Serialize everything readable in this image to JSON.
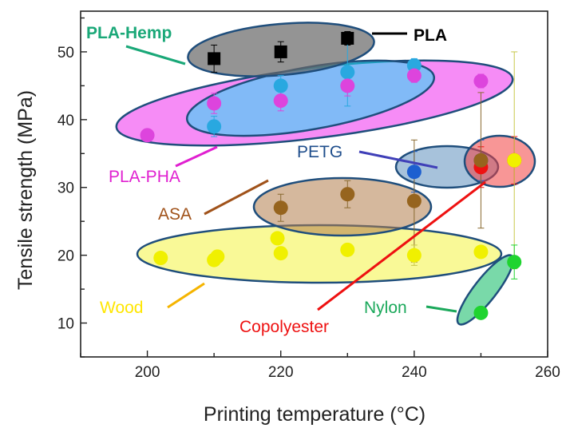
{
  "chart_data": {
    "type": "scatter",
    "xlabel": "Printing temperature (°C)",
    "ylabel": "Tensile strength (MPa)",
    "xlim": [
      190,
      260
    ],
    "ylim": [
      5,
      56
    ],
    "xticks": [
      200,
      220,
      240,
      260
    ],
    "yticks": [
      10,
      20,
      30,
      40,
      50
    ],
    "grid": false,
    "series": [
      {
        "name": "PLA",
        "color": "#000000",
        "marker": "square",
        "points": [
          {
            "x": 210,
            "y": 49,
            "err": 2
          },
          {
            "x": 220,
            "y": 50,
            "err": 1.5
          },
          {
            "x": 230,
            "y": 52,
            "err": 1
          }
        ]
      },
      {
        "name": "PLA-Hemp",
        "color": "#29a8e0",
        "marker": "circle",
        "points": [
          {
            "x": 210,
            "y": 39,
            "err": 1.5
          },
          {
            "x": 220,
            "y": 45,
            "err": 1.5
          },
          {
            "x": 230,
            "y": 47,
            "err": 5
          },
          {
            "x": 240,
            "y": 48,
            "err": 1
          }
        ]
      },
      {
        "name": "PLA-PHA",
        "color": "#dd44dd",
        "marker": "circle",
        "points": [
          {
            "x": 200,
            "y": 37.7,
            "err": 0.5
          },
          {
            "x": 210,
            "y": 42.4,
            "err": 1.5
          },
          {
            "x": 220,
            "y": 42.8,
            "err": 1.5
          },
          {
            "x": 230,
            "y": 45,
            "err": 1.5
          },
          {
            "x": 240,
            "y": 46.5,
            "err": 1
          },
          {
            "x": 250,
            "y": 45.7,
            "err": 1
          }
        ]
      },
      {
        "name": "PETG",
        "color": "#1d5fd0",
        "marker": "circle",
        "points": [
          {
            "x": 240,
            "y": 32.3,
            "err": 3
          },
          {
            "x": 250,
            "y": 34,
            "err": 3
          }
        ]
      },
      {
        "name": "Copolyester",
        "color": "#ee1111",
        "marker": "circle",
        "points": [
          {
            "x": 250,
            "y": 33,
            "err": 3
          },
          {
            "x": 255,
            "y": 34,
            "err": 3.5
          }
        ]
      },
      {
        "name": "ASA",
        "color": "#96641e",
        "marker": "circle",
        "points": [
          {
            "x": 220,
            "y": 27,
            "err": 2
          },
          {
            "x": 230,
            "y": 29,
            "err": 2
          },
          {
            "x": 240,
            "y": 28,
            "err": 9
          },
          {
            "x": 250,
            "y": 34,
            "err": 10
          }
        ]
      },
      {
        "name": "Wood",
        "color": "#f0f000",
        "marker": "circle",
        "points": [
          {
            "x": 202,
            "y": 19.6,
            "err": 0.5
          },
          {
            "x": 210,
            "y": 19.3,
            "err": 0.5
          },
          {
            "x": 210.5,
            "y": 19.8,
            "err": 0.5
          },
          {
            "x": 219.5,
            "y": 22.5,
            "err": 0.5
          },
          {
            "x": 220,
            "y": 20.3,
            "err": 0.5
          },
          {
            "x": 230,
            "y": 20.8,
            "err": 0.5
          },
          {
            "x": 240,
            "y": 20,
            "err": 1.5
          },
          {
            "x": 250,
            "y": 20.5,
            "err": 0.5
          },
          {
            "x": 255,
            "y": 34,
            "err": 16
          }
        ]
      },
      {
        "name": "Nylon",
        "color": "#1fd42f",
        "marker": "circle",
        "points": [
          {
            "x": 250,
            "y": 11.5,
            "err": 0.5
          },
          {
            "x": 255,
            "y": 19,
            "err": 2.5
          }
        ]
      }
    ],
    "annotations": [
      {
        "text": "PLA",
        "color": "#000000",
        "bold": true
      },
      {
        "text": "PLA-Hemp",
        "color": "#1aa878",
        "bold": true
      },
      {
        "text": "PLA-PHA",
        "color": "#e020d0",
        "bold": false
      },
      {
        "text": "PETG",
        "color": "#1f4e8c",
        "bold": false
      },
      {
        "text": "ASA",
        "color": "#a0521a",
        "bold": false
      },
      {
        "text": "Wood",
        "color": "#ffe600",
        "bold": false
      },
      {
        "text": "Copolyester",
        "color": "#ee1111",
        "bold": false
      },
      {
        "text": "Nylon",
        "color": "#1aa85a",
        "bold": false
      }
    ]
  }
}
